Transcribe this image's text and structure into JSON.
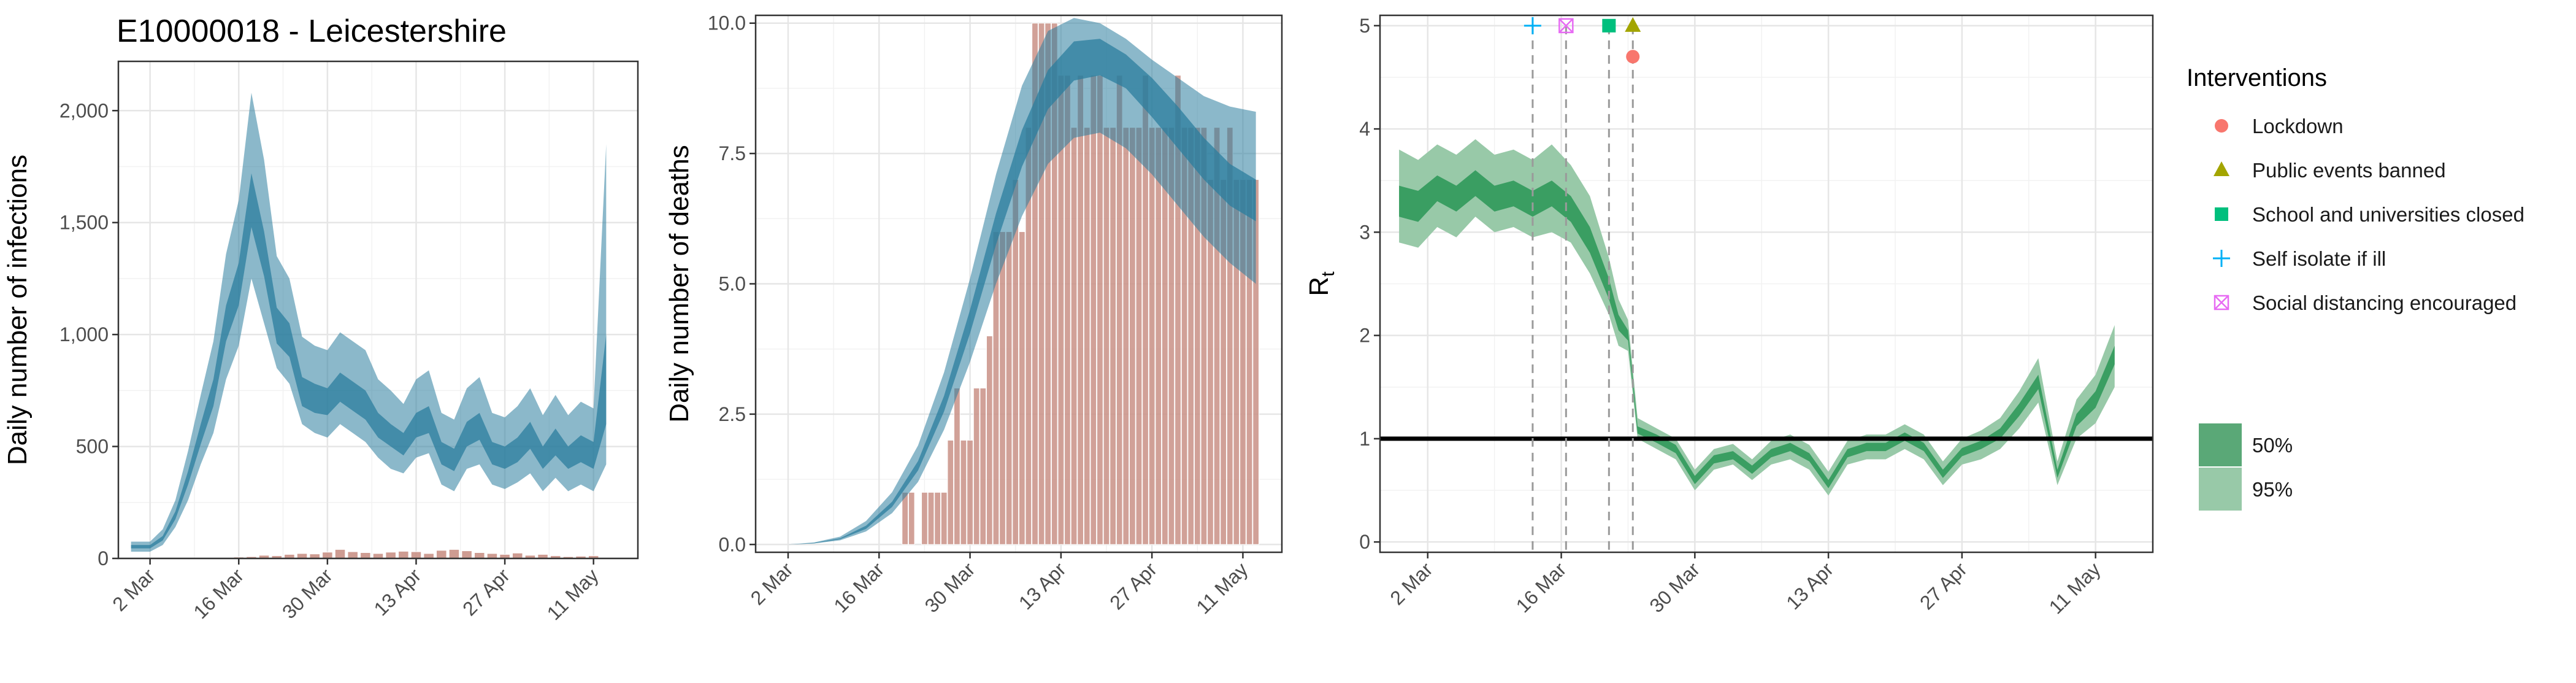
{
  "title": "E10000018 - Leicestershire",
  "colors": {
    "infection_band": "#2b7d9e",
    "infection_band_light": "#8fbccf",
    "deaths_bar": "#c99186",
    "rt_band": "#3a9e62",
    "rt_band_light": "#98c9a8",
    "lockdown": "#f8766d",
    "public_events": "#a3a500",
    "school": "#00bf7d",
    "self_isolate": "#00b0f6",
    "social_distancing": "#e76bf3"
  },
  "chart_data": [
    {
      "type": "area",
      "ylabel": "Daily number of infections",
      "x_tick_labels": [
        "2 Mar",
        "16 Mar",
        "30 Mar",
        "13 Apr",
        "27 Apr",
        "11 May"
      ],
      "x_tick_days": [
        0,
        14,
        28,
        42,
        56,
        70
      ],
      "y_tick_labels": [
        "0",
        "500",
        "1,000",
        "1,500",
        "2,000"
      ],
      "y_tick_values": [
        0,
        500,
        1000,
        1500,
        2000
      ],
      "xlim": [
        -5,
        77
      ],
      "ylim": [
        0,
        2220
      ],
      "series": [
        {
          "x": [
            -3,
            0,
            2,
            4,
            6,
            8,
            10,
            12,
            14,
            16,
            18,
            20,
            22,
            24,
            26,
            28,
            30,
            32,
            34,
            36,
            38,
            40,
            42,
            44,
            46,
            48,
            50,
            52,
            54,
            56,
            58,
            60,
            62,
            64,
            66,
            68,
            70,
            72
          ],
          "lo95": [
            30,
            30,
            60,
            140,
            260,
            420,
            560,
            800,
            950,
            1250,
            1050,
            850,
            780,
            600,
            560,
            540,
            600,
            560,
            520,
            450,
            400,
            380,
            450,
            470,
            330,
            300,
            400,
            420,
            330,
            310,
            340,
            380,
            300,
            360,
            300,
            330,
            300,
            420
          ],
          "lo50": [
            45,
            45,
            80,
            175,
            330,
            510,
            680,
            970,
            1130,
            1480,
            1260,
            960,
            900,
            680,
            650,
            640,
            700,
            660,
            620,
            540,
            500,
            460,
            540,
            560,
            420,
            390,
            500,
            530,
            420,
            400,
            430,
            490,
            400,
            460,
            400,
            430,
            400,
            600
          ],
          "hi50": [
            60,
            60,
            100,
            210,
            390,
            600,
            800,
            1130,
            1320,
            1720,
            1460,
            1120,
            1050,
            810,
            780,
            760,
            830,
            790,
            750,
            650,
            600,
            560,
            650,
            680,
            520,
            490,
            610,
            650,
            520,
            500,
            540,
            610,
            500,
            580,
            500,
            550,
            520,
            1000
          ],
          "hi95": [
            75,
            75,
            130,
            260,
            480,
            730,
            970,
            1360,
            1600,
            2080,
            1780,
            1350,
            1250,
            990,
            950,
            930,
            1010,
            970,
            930,
            800,
            750,
            690,
            800,
            840,
            650,
            620,
            760,
            810,
            650,
            630,
            680,
            760,
            640,
            730,
            640,
            700,
            670,
            1850
          ]
        }
      ],
      "bars": {
        "x": [
          14,
          16,
          18,
          20,
          22,
          24,
          26,
          28,
          30,
          32,
          34,
          36,
          38,
          40,
          42,
          44,
          46,
          48,
          50,
          52,
          54,
          56,
          58,
          60,
          62,
          64,
          66,
          68,
          70
        ],
        "values": [
          6,
          8,
          14,
          12,
          18,
          22,
          20,
          28,
          40,
          30,
          26,
          22,
          28,
          32,
          30,
          22,
          36,
          40,
          34,
          26,
          22,
          18,
          24,
          14,
          18,
          12,
          8,
          10,
          12
        ]
      }
    },
    {
      "type": "area",
      "ylabel": "Daily number of deaths",
      "x_tick_labels": [
        "2 Mar",
        "16 Mar",
        "30 Mar",
        "13 Apr",
        "27 Apr",
        "11 May"
      ],
      "x_tick_days": [
        0,
        14,
        28,
        42,
        56,
        70
      ],
      "y_tick_labels": [
        "0.0",
        "2.5",
        "5.0",
        "7.5",
        "10.0"
      ],
      "y_tick_values": [
        0,
        2.5,
        5,
        7.5,
        10
      ],
      "xlim": [
        -5,
        76
      ],
      "ylim": [
        -0.15,
        10.15
      ],
      "series": [
        {
          "x": [
            0,
            4,
            8,
            12,
            16,
            20,
            24,
            28,
            32,
            36,
            40,
            44,
            48,
            52,
            56,
            60,
            64,
            68,
            72
          ],
          "lo95": [
            0,
            0.02,
            0.08,
            0.25,
            0.6,
            1.2,
            2.2,
            3.5,
            5.0,
            6.3,
            7.3,
            7.8,
            7.9,
            7.6,
            7.1,
            6.5,
            5.9,
            5.4,
            5.0
          ],
          "lo50": [
            0,
            0.02,
            0.1,
            0.3,
            0.72,
            1.42,
            2.55,
            4.05,
            5.75,
            7.25,
            8.35,
            8.9,
            9.0,
            8.75,
            8.2,
            7.6,
            7.0,
            6.5,
            6.2
          ],
          "hi50": [
            0,
            0.03,
            0.12,
            0.36,
            0.82,
            1.6,
            2.85,
            4.5,
            6.35,
            7.95,
            9.1,
            9.65,
            9.7,
            9.4,
            8.95,
            8.4,
            7.8,
            7.3,
            7.0
          ],
          "hi95": [
            0,
            0.04,
            0.15,
            0.45,
            1.0,
            1.9,
            3.3,
            5.1,
            7.1,
            8.8,
            9.85,
            10.1,
            10.0,
            9.7,
            9.3,
            8.95,
            8.6,
            8.4,
            8.3
          ]
        }
      ],
      "bars": {
        "x": [
          18,
          19,
          20,
          21,
          22,
          23,
          24,
          25,
          26,
          27,
          28,
          29,
          30,
          31,
          32,
          33,
          34,
          35,
          36,
          37,
          38,
          39,
          40,
          41,
          42,
          43,
          44,
          45,
          46,
          47,
          48,
          49,
          50,
          51,
          52,
          53,
          54,
          55,
          56,
          57,
          58,
          59,
          60,
          61,
          62,
          63,
          64,
          65,
          66,
          67,
          68,
          69,
          70,
          71,
          72
        ],
        "values": [
          1,
          1,
          0,
          1,
          1,
          1,
          1,
          2,
          3,
          2,
          2,
          3,
          3,
          4,
          6,
          6,
          6,
          7,
          6,
          8,
          10,
          10,
          10,
          10,
          9,
          9,
          8,
          9,
          8,
          9,
          9,
          8,
          8,
          9,
          8,
          8,
          8,
          9,
          8,
          8,
          8,
          8,
          9,
          8,
          8,
          8,
          8,
          7,
          8,
          7,
          8,
          7,
          7,
          7,
          7
        ]
      }
    },
    {
      "type": "area",
      "ylabel": "R",
      "ylabel_subscript": "t",
      "x_tick_labels": [
        "2 Mar",
        "16 Mar",
        "30 Mar",
        "13 Apr",
        "27 Apr",
        "11 May"
      ],
      "x_tick_days": [
        0,
        14,
        28,
        42,
        56,
        70
      ],
      "y_tick_labels": [
        "0",
        "1",
        "2",
        "3",
        "4",
        "5"
      ],
      "y_tick_values": [
        0,
        1,
        2,
        3,
        4,
        5
      ],
      "xlim": [
        -5,
        76
      ],
      "ylim": [
        -0.1,
        5.1
      ],
      "reference_line": 1,
      "intervention_days": [
        11,
        14.5,
        19,
        21.5
      ],
      "series": [
        {
          "x": [
            -3,
            -1,
            1,
            3,
            5,
            7,
            9,
            11,
            13,
            15,
            17,
            19,
            20,
            21,
            22,
            24,
            26,
            28,
            30,
            32,
            34,
            36,
            38,
            40,
            42,
            44,
            46,
            48,
            50,
            52,
            54,
            56,
            58,
            60,
            62,
            64,
            66,
            68,
            70,
            72
          ],
          "lo95": [
            2.9,
            2.85,
            3.05,
            2.95,
            3.15,
            3.0,
            3.05,
            2.95,
            3.0,
            2.9,
            2.6,
            2.2,
            1.9,
            1.85,
            1.0,
            0.9,
            0.8,
            0.5,
            0.7,
            0.75,
            0.6,
            0.75,
            0.8,
            0.7,
            0.45,
            0.75,
            0.8,
            0.8,
            0.9,
            0.8,
            0.55,
            0.75,
            0.8,
            0.9,
            1.1,
            1.35,
            0.55,
            1.0,
            1.15,
            1.5
          ],
          "lo50": [
            3.15,
            3.1,
            3.3,
            3.2,
            3.35,
            3.2,
            3.25,
            3.15,
            3.25,
            3.1,
            2.8,
            2.35,
            2.05,
            1.95,
            1.05,
            0.96,
            0.86,
            0.56,
            0.76,
            0.8,
            0.66,
            0.82,
            0.88,
            0.78,
            0.52,
            0.82,
            0.88,
            0.88,
            0.98,
            0.88,
            0.62,
            0.83,
            0.9,
            1.0,
            1.22,
            1.48,
            0.62,
            1.12,
            1.3,
            1.72
          ],
          "hi50": [
            3.45,
            3.4,
            3.55,
            3.45,
            3.6,
            3.45,
            3.5,
            3.4,
            3.5,
            3.35,
            3.05,
            2.55,
            2.2,
            2.05,
            1.12,
            1.04,
            0.94,
            0.64,
            0.84,
            0.88,
            0.74,
            0.9,
            0.96,
            0.86,
            0.6,
            0.9,
            0.96,
            0.96,
            1.06,
            0.96,
            0.7,
            0.91,
            0.98,
            1.1,
            1.34,
            1.62,
            0.7,
            1.24,
            1.46,
            1.9
          ],
          "hi95": [
            3.8,
            3.7,
            3.85,
            3.75,
            3.9,
            3.75,
            3.8,
            3.7,
            3.85,
            3.65,
            3.35,
            2.75,
            2.35,
            2.15,
            1.2,
            1.1,
            1.0,
            0.7,
            0.9,
            0.95,
            0.8,
            0.98,
            1.04,
            0.94,
            0.68,
            0.98,
            1.04,
            1.04,
            1.14,
            1.04,
            0.78,
            1.0,
            1.08,
            1.2,
            1.46,
            1.78,
            0.78,
            1.38,
            1.62,
            2.1
          ]
        }
      ]
    }
  ],
  "legend": {
    "title": "Interventions",
    "items": [
      {
        "label": "Lockdown",
        "icon": "circle-icon",
        "color": "#f8766d"
      },
      {
        "label": "Public events banned",
        "icon": "triangle-icon",
        "color": "#a3a500"
      },
      {
        "label": "School and universities closed",
        "icon": "square-icon",
        "color": "#00bf7d"
      },
      {
        "label": "Self isolate if ill",
        "icon": "plus-icon",
        "color": "#00b0f6"
      },
      {
        "label": "Social distancing encouraged",
        "icon": "square-cross-icon",
        "color": "#e76bf3"
      }
    ],
    "bands": [
      {
        "label": "50%",
        "color": "#5aa877"
      },
      {
        "label": "95%",
        "color": "#98c9a8"
      }
    ]
  }
}
